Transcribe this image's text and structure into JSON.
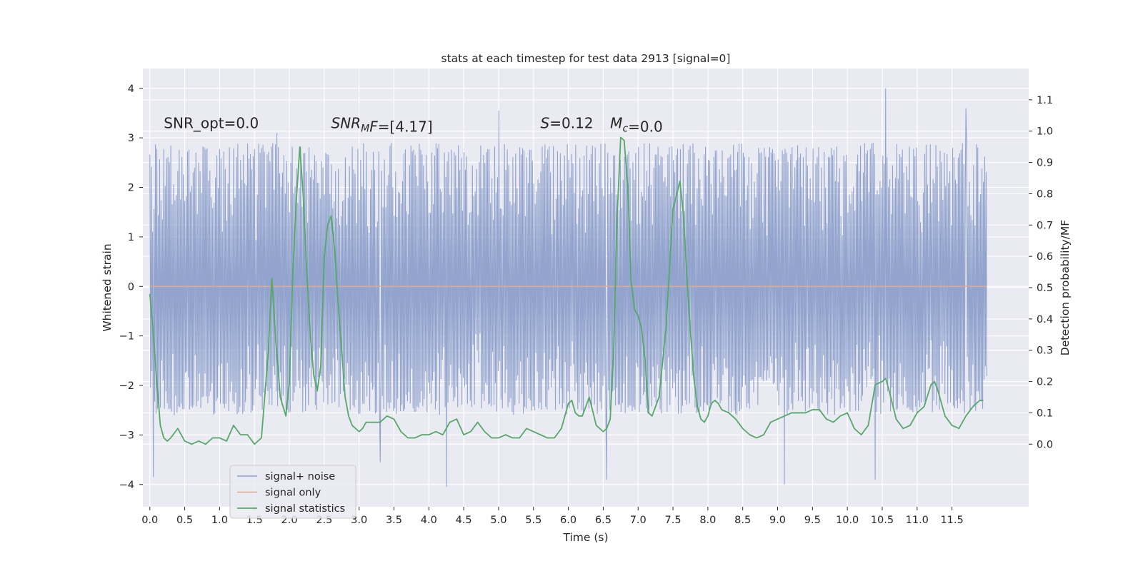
{
  "chart_data": {
    "type": "line",
    "title": "stats at each timestep for test data 2913 [signal=0]",
    "xlabel": "Time (s)",
    "ylabel_left": "Whitened strain",
    "ylabel_right": "Detection probability/MF",
    "xlim": [
      -0.1,
      12.6
    ],
    "ylim_left": [
      -4.45,
      4.4
    ],
    "ylim_right": [
      -0.2,
      1.2
    ],
    "x_ticks": [
      0.0,
      0.5,
      1.0,
      1.5,
      2.0,
      2.5,
      3.0,
      3.5,
      4.0,
      4.5,
      5.0,
      5.5,
      6.0,
      6.5,
      7.0,
      7.5,
      8.0,
      8.5,
      9.0,
      9.5,
      10.0,
      10.5,
      11.0,
      11.5
    ],
    "x_tick_labels": [
      "0.0",
      "0.5",
      "1.0",
      "1.5",
      "2.0",
      "2.5",
      "3.0",
      "3.5",
      "4.0",
      "4.5",
      "5.0",
      "5.5",
      "6.0",
      "6.5",
      "7.0",
      "7.5",
      "8.0",
      "8.5",
      "9.0",
      "9.5",
      "10.0",
      "10.5",
      "11.0",
      "11.5"
    ],
    "y_left_ticks": [
      -4,
      -3,
      -2,
      -1,
      0,
      1,
      2,
      3,
      4
    ],
    "y_left_tick_labels": [
      "−4",
      "−3",
      "−2",
      "−1",
      "0",
      "1",
      "2",
      "3",
      "4"
    ],
    "y_right_ticks": [
      0.0,
      0.1,
      0.2,
      0.3,
      0.4,
      0.5,
      0.6,
      0.7,
      0.8,
      0.9,
      1.0,
      1.1
    ],
    "y_right_tick_labels": [
      "0.0",
      "0.1",
      "0.2",
      "0.3",
      "0.4",
      "0.5",
      "0.6",
      "0.7",
      "0.8",
      "0.9",
      "1.0",
      "1.1"
    ],
    "grid": true,
    "legend_location": "lower-left",
    "annotations": [
      {
        "parts": [
          {
            "text": "SNR_opt=0.0",
            "style": "normal"
          }
        ],
        "x": 0.2,
        "y": 3.2
      },
      {
        "parts": [
          {
            "text": "SNR",
            "style": "italic"
          },
          {
            "text": "M",
            "style": "italic-sub"
          },
          {
            "text": "F",
            "style": "italic"
          },
          {
            "text": "=[4.17]",
            "style": "normal"
          }
        ],
        "x": 2.6,
        "y": 3.2
      },
      {
        "parts": [
          {
            "text": "S",
            "style": "italic"
          },
          {
            "text": "=0.12",
            "style": "normal"
          }
        ],
        "x": 5.6,
        "y": 3.2
      },
      {
        "parts": [
          {
            "text": "M",
            "style": "italic"
          },
          {
            "text": "c",
            "style": "italic-sub"
          },
          {
            "text": "=0.0",
            "style": "normal"
          }
        ],
        "x": 6.6,
        "y": 3.2
      }
    ],
    "series": [
      {
        "name": "signal+ noise",
        "color": "#8da0cb",
        "axis": "left",
        "x_range": [
          0.0,
          12.0
        ],
        "samples": 1200,
        "typical_range": [
          -2.6,
          2.9
        ],
        "extremes": [
          {
            "x": 0.05,
            "y": -3.85
          },
          {
            "x": 1.82,
            "y": 3.1
          },
          {
            "x": 3.3,
            "y": -3.55
          },
          {
            "x": 4.25,
            "y": -4.05
          },
          {
            "x": 5.0,
            "y": 3.55
          },
          {
            "x": 6.55,
            "y": -3.9
          },
          {
            "x": 9.1,
            "y": -4.0
          },
          {
            "x": 10.4,
            "y": -3.9
          },
          {
            "x": 10.55,
            "y": 4.0
          },
          {
            "x": 11.7,
            "y": 3.6
          }
        ]
      },
      {
        "name": "signal only",
        "color": "#e5a98a",
        "axis": "left",
        "x": [
          0.0,
          12.0
        ],
        "y": [
          0.0,
          0.0
        ]
      },
      {
        "name": "signal statistics",
        "color": "#55a868",
        "axis": "right",
        "x": [
          0.0,
          0.05,
          0.1,
          0.15,
          0.2,
          0.25,
          0.3,
          0.4,
          0.5,
          0.6,
          0.7,
          0.8,
          0.9,
          1.0,
          1.1,
          1.2,
          1.3,
          1.4,
          1.5,
          1.6,
          1.7,
          1.75,
          1.8,
          1.87,
          1.95,
          2.0,
          2.05,
          2.1,
          2.15,
          2.2,
          2.25,
          2.3,
          2.35,
          2.4,
          2.45,
          2.5,
          2.55,
          2.6,
          2.65,
          2.7,
          2.75,
          2.8,
          2.85,
          2.9,
          2.95,
          3.0,
          3.05,
          3.1,
          3.2,
          3.3,
          3.4,
          3.5,
          3.6,
          3.7,
          3.8,
          3.9,
          4.0,
          4.1,
          4.2,
          4.3,
          4.4,
          4.5,
          4.6,
          4.7,
          4.8,
          4.9,
          5.0,
          5.1,
          5.2,
          5.3,
          5.4,
          5.5,
          5.6,
          5.7,
          5.8,
          5.9,
          6.0,
          6.05,
          6.1,
          6.15,
          6.2,
          6.25,
          6.3,
          6.4,
          6.5,
          6.55,
          6.6,
          6.65,
          6.7,
          6.75,
          6.8,
          6.85,
          6.9,
          6.95,
          7.0,
          7.05,
          7.1,
          7.15,
          7.2,
          7.3,
          7.4,
          7.5,
          7.6,
          7.65,
          7.7,
          7.75,
          7.8,
          7.85,
          7.9,
          7.95,
          8.0,
          8.05,
          8.1,
          8.15,
          8.2,
          8.3,
          8.4,
          8.5,
          8.6,
          8.7,
          8.8,
          8.9,
          9.0,
          9.1,
          9.2,
          9.3,
          9.4,
          9.5,
          9.6,
          9.7,
          9.8,
          9.9,
          10.0,
          10.1,
          10.2,
          10.3,
          10.4,
          10.5,
          10.55,
          10.6,
          10.7,
          10.8,
          10.9,
          11.0,
          11.1,
          11.2,
          11.25,
          11.3,
          11.4,
          11.5,
          11.6,
          11.7,
          11.8,
          11.9,
          11.95
        ],
        "y": [
          0.48,
          0.35,
          0.2,
          0.06,
          0.02,
          0.01,
          0.02,
          0.05,
          0.01,
          0.0,
          0.01,
          0.0,
          0.02,
          0.02,
          0.01,
          0.06,
          0.03,
          0.03,
          0.0,
          0.02,
          0.3,
          0.53,
          0.35,
          0.15,
          0.09,
          0.2,
          0.55,
          0.78,
          0.95,
          0.79,
          0.55,
          0.35,
          0.22,
          0.17,
          0.25,
          0.6,
          0.7,
          0.73,
          0.62,
          0.45,
          0.3,
          0.15,
          0.09,
          0.06,
          0.05,
          0.04,
          0.05,
          0.07,
          0.07,
          0.07,
          0.09,
          0.08,
          0.04,
          0.02,
          0.02,
          0.03,
          0.03,
          0.04,
          0.03,
          0.07,
          0.08,
          0.03,
          0.04,
          0.07,
          0.04,
          0.02,
          0.02,
          0.03,
          0.02,
          0.02,
          0.05,
          0.04,
          0.03,
          0.02,
          0.02,
          0.05,
          0.13,
          0.14,
          0.1,
          0.09,
          0.09,
          0.12,
          0.15,
          0.06,
          0.04,
          0.05,
          0.08,
          0.3,
          0.73,
          0.98,
          0.97,
          0.83,
          0.52,
          0.43,
          0.41,
          0.37,
          0.27,
          0.1,
          0.09,
          0.15,
          0.37,
          0.75,
          0.84,
          0.73,
          0.53,
          0.36,
          0.21,
          0.12,
          0.08,
          0.07,
          0.09,
          0.13,
          0.14,
          0.13,
          0.11,
          0.1,
          0.08,
          0.05,
          0.03,
          0.02,
          0.03,
          0.07,
          0.08,
          0.09,
          0.1,
          0.1,
          0.1,
          0.11,
          0.11,
          0.08,
          0.07,
          0.09,
          0.1,
          0.05,
          0.03,
          0.06,
          0.19,
          0.2,
          0.21,
          0.17,
          0.08,
          0.05,
          0.06,
          0.1,
          0.12,
          0.19,
          0.2,
          0.17,
          0.09,
          0.06,
          0.05,
          0.09,
          0.12,
          0.14,
          0.14
        ]
      }
    ]
  }
}
